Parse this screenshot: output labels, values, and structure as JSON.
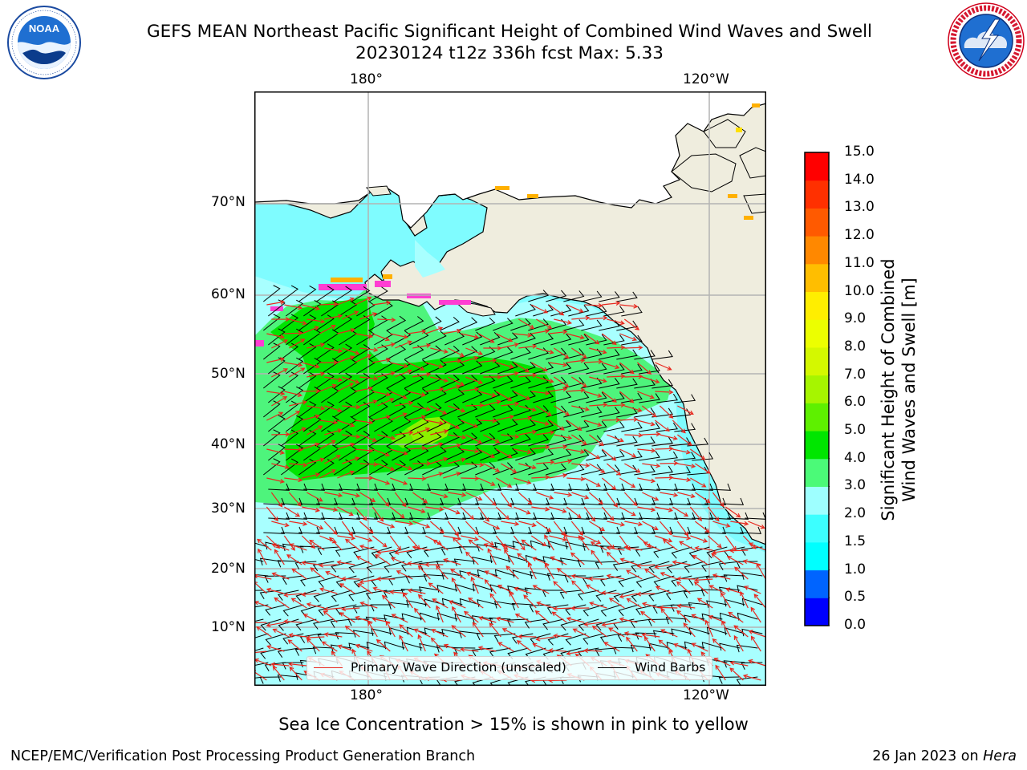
{
  "header": {
    "title_line1": "GEFS MEAN Northeast Pacific Significant Height of Combined Wind Waves and Swell",
    "title_line2": "20230124 t12z 336h fcst   Max: 5.33"
  },
  "logos": {
    "left": {
      "text": "NOAA",
      "ring_text": "NATIONAL OCEANIC AND ATMOSPHERIC ADMINISTRATION · U.S. DEPARTMENT OF COMMERCE"
    },
    "right": {
      "ring_text": "NATIONAL WEATHER SERVICE"
    }
  },
  "map": {
    "lon_labels_top": [
      "180°",
      "120°W"
    ],
    "lon_labels_bottom": [
      "180°",
      "120°W"
    ],
    "lat_labels": [
      "70°N",
      "60°N",
      "50°N",
      "40°N",
      "30°N",
      "20°N",
      "10°N"
    ],
    "legend": {
      "wave": "Primary Wave Direction (unscaled)",
      "barb": "Wind Barbs",
      "wave_color": "#e8281e",
      "barb_color": "#000000"
    },
    "land_color": "#efedde",
    "ice_colors": [
      "#ff3dd2",
      "#ffb000",
      "#ffe000"
    ]
  },
  "colorbar": {
    "label_line1": "Significant Height of Combined",
    "label_line2": "Wind Waves and Swell [m]",
    "ticks": [
      "0.0",
      "0.5",
      "1.0",
      "1.5",
      "2.0",
      "3.0",
      "4.0",
      "5.0",
      "6.0",
      "7.0",
      "8.0",
      "9.0",
      "10.0",
      "11.0",
      "12.0",
      "13.0",
      "14.0",
      "15.0"
    ],
    "colors": [
      "#0000ff",
      "#0064ff",
      "#00ffff",
      "#3cffff",
      "#9effff",
      "#4bfa78",
      "#00e600",
      "#5ef000",
      "#a6f500",
      "#d4f800",
      "#ecff00",
      "#ffee00",
      "#ffbe00",
      "#ff8800",
      "#ff5a00",
      "#ff3000",
      "#ff0000"
    ]
  },
  "footer": {
    "note": "Sea Ice Concentration > 15% is shown in pink to yellow",
    "credit": "NCEP/EMC/Verification Post Processing Product Generation Branch",
    "date": "26 Jan 2023 on ",
    "machine": "Hera"
  }
}
